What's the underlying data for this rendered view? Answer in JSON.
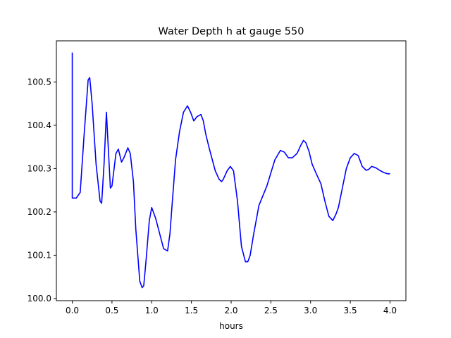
{
  "chart_data": {
    "type": "line",
    "title": "Water Depth h at gauge 550",
    "xlabel": "hours",
    "ylabel": "",
    "xlim": [
      -0.2,
      4.2
    ],
    "ylim": [
      99.995,
      100.595
    ],
    "xticks": [
      0.0,
      0.5,
      1.0,
      1.5,
      2.0,
      2.5,
      3.0,
      3.5,
      4.0
    ],
    "xtick_labels": [
      "0.0",
      "0.5",
      "1.0",
      "1.5",
      "2.0",
      "2.5",
      "3.0",
      "3.5",
      "4.0"
    ],
    "yticks": [
      100.0,
      100.1,
      100.2,
      100.3,
      100.4,
      100.5
    ],
    "ytick_labels": [
      "100.0",
      "100.1",
      "100.2",
      "100.3",
      "100.4",
      "100.5"
    ],
    "grid": false,
    "series": [
      {
        "color": "#0000ff",
        "x": [
          0.0,
          0.0,
          0.0,
          0.05,
          0.1,
          0.15,
          0.2,
          0.22,
          0.25,
          0.3,
          0.35,
          0.37,
          0.4,
          0.43,
          0.45,
          0.48,
          0.5,
          0.55,
          0.58,
          0.62,
          0.65,
          0.7,
          0.73,
          0.77,
          0.8,
          0.85,
          0.88,
          0.9,
          0.93,
          0.97,
          1.0,
          1.05,
          1.1,
          1.15,
          1.2,
          1.23,
          1.25,
          1.3,
          1.35,
          1.4,
          1.45,
          1.49,
          1.53,
          1.57,
          1.62,
          1.65,
          1.68,
          1.72,
          1.8,
          1.85,
          1.88,
          1.9,
          1.95,
          1.99,
          2.03,
          2.08,
          2.13,
          2.18,
          2.21,
          2.24,
          2.28,
          2.35,
          2.45,
          2.55,
          2.62,
          2.67,
          2.72,
          2.77,
          2.83,
          2.88,
          2.91,
          2.94,
          2.98,
          3.02,
          3.08,
          3.13,
          3.18,
          3.23,
          3.28,
          3.32,
          3.35,
          3.4,
          3.45,
          3.5,
          3.55,
          3.6,
          3.65,
          3.7,
          3.73,
          3.77,
          3.82,
          3.87,
          3.92,
          3.97,
          4.0
        ],
        "y": [
          100.568,
          100.5,
          100.232,
          100.232,
          100.245,
          100.38,
          100.505,
          100.51,
          100.45,
          100.31,
          100.225,
          100.22,
          100.31,
          100.43,
          100.36,
          100.255,
          100.26,
          100.335,
          100.345,
          100.315,
          100.325,
          100.348,
          100.335,
          100.27,
          100.16,
          100.04,
          100.025,
          100.03,
          100.09,
          100.18,
          100.21,
          100.185,
          100.15,
          100.115,
          100.11,
          100.15,
          100.2,
          100.32,
          100.385,
          100.43,
          100.445,
          100.43,
          100.41,
          100.42,
          100.425,
          100.41,
          100.38,
          100.35,
          100.295,
          100.275,
          100.27,
          100.275,
          100.295,
          100.305,
          100.295,
          100.225,
          100.12,
          100.085,
          100.085,
          100.1,
          100.145,
          100.215,
          100.26,
          100.32,
          100.342,
          100.338,
          100.325,
          100.325,
          100.335,
          100.355,
          100.365,
          100.36,
          100.34,
          100.31,
          100.285,
          100.265,
          100.225,
          100.19,
          100.18,
          100.195,
          100.21,
          100.255,
          100.3,
          100.325,
          100.335,
          100.33,
          100.305,
          100.296,
          100.298,
          100.305,
          100.302,
          100.296,
          100.291,
          100.288,
          100.288
        ]
      }
    ]
  }
}
